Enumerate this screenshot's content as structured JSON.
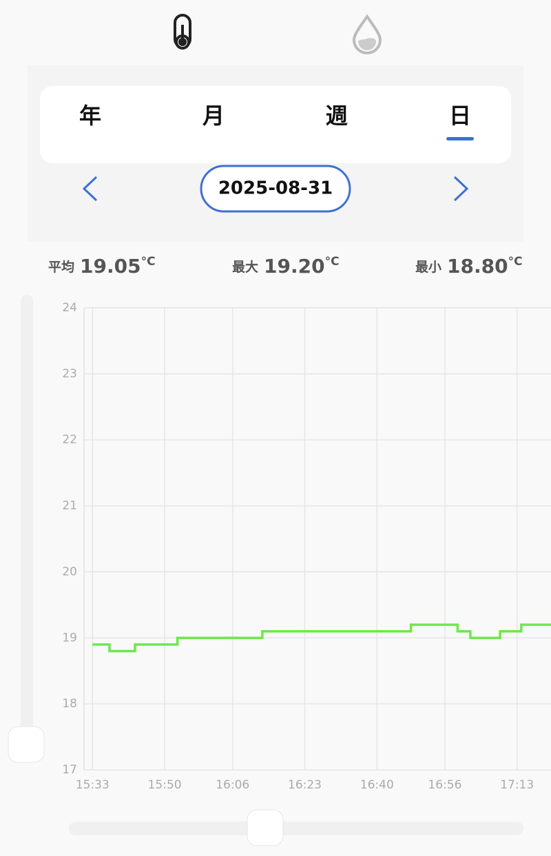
{
  "tabs": {
    "items": [
      "年",
      "月",
      "週",
      "日"
    ],
    "selected": "日"
  },
  "date": "2025-08-31",
  "stats": [
    {
      "label": "平均",
      "value": "19.05",
      "unit": "°C"
    },
    {
      "label": "最大",
      "value": "19.20",
      "unit": "°C"
    },
    {
      "label": "最小",
      "value": "18.80",
      "unit": "°C"
    }
  ],
  "chart_data": {
    "type": "step-line",
    "x": [
      "15:33",
      "15:37",
      "15:43",
      "15:53",
      "16:13",
      "16:48",
      "16:59",
      "17:02",
      "17:09",
      "17:14",
      "17:21"
    ],
    "series": [
      {
        "name": "温度",
        "color": "#6ee84a",
        "values": [
          18.9,
          18.8,
          18.9,
          19.0,
          19.1,
          19.2,
          19.1,
          19.0,
          19.1,
          19.2,
          19.2
        ]
      }
    ],
    "xlim": [
      "15:31",
      "17:21"
    ],
    "xticks": [
      "15:33",
      "15:50",
      "16:06",
      "16:23",
      "16:40",
      "16:56",
      "17:13"
    ],
    "ylim": [
      17,
      24
    ],
    "yticks": [
      17,
      18,
      19,
      20,
      21,
      22,
      23,
      24
    ],
    "grid": true
  }
}
